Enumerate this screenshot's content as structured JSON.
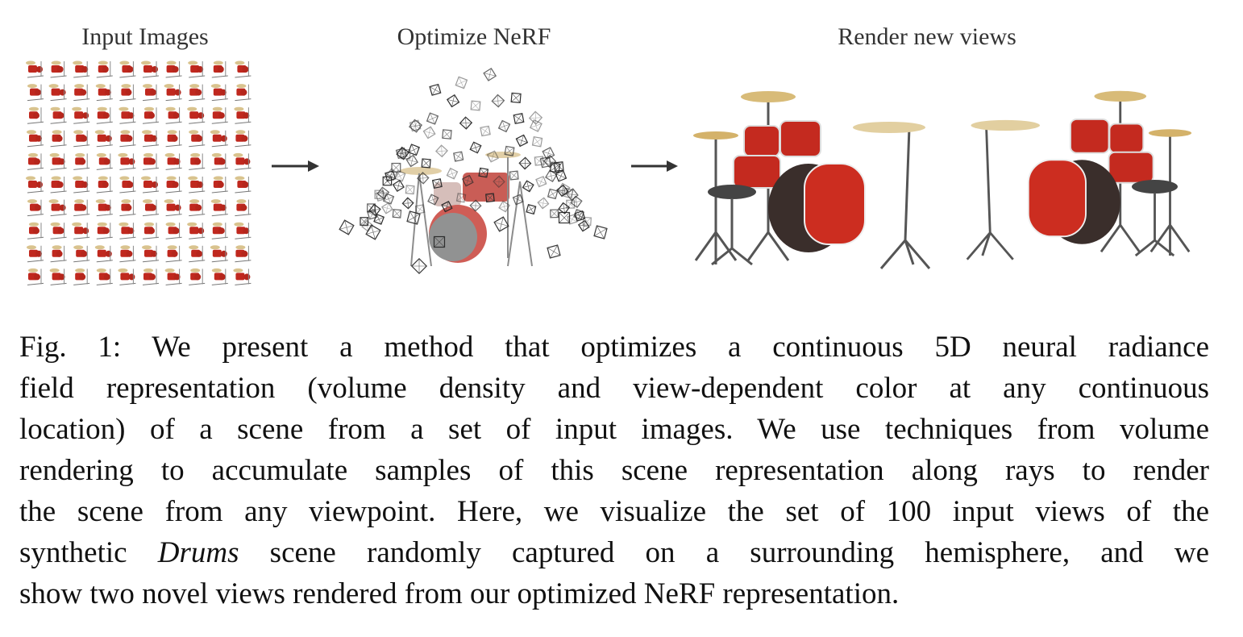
{
  "figure": {
    "panels": [
      "Input Images",
      "Optimize NeRF",
      "Render new views"
    ],
    "caption": {
      "lines": [
        [
          "Fig. 1: We present a method that optimizes a continuous 5D neural radiance"
        ],
        [
          "field representation (volume density and view-dependent color at any continuous"
        ],
        [
          "location) of a scene from a set of input images. We use techniques from volume"
        ],
        [
          "rendering to accumulate samples of this scene representation along rays to render"
        ],
        [
          "the scene from any viewpoint. Here, we visualize the set of 100 input views of the"
        ],
        [
          "synthetic ",
          {
            "text": "Drums",
            "italic": true
          },
          " scene randomly captured on a surrounding hemisphere, and we"
        ],
        [
          "show two novel views rendered from our optimized NeRF representation."
        ]
      ]
    }
  }
}
